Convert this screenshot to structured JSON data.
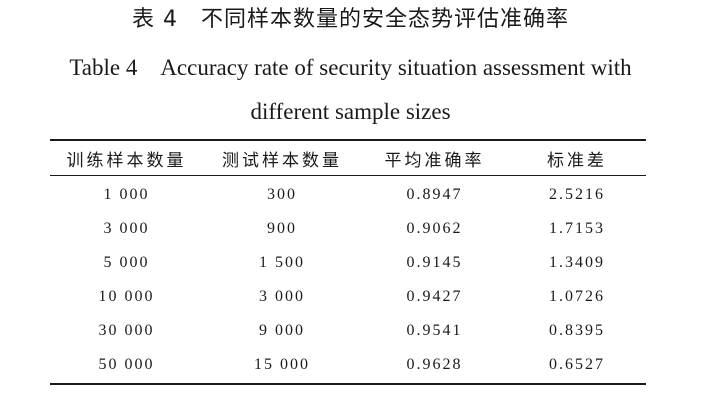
{
  "caption": {
    "cn": "表 4　不同样本数量的安全态势评估准确率",
    "en_line1": "Table 4　Accuracy rate of security situation assessment with",
    "en_line2": "different sample sizes"
  },
  "table": {
    "headers": [
      "训练样本数量",
      "测试样本数量",
      "平均准确率",
      "标准差"
    ],
    "rows": [
      [
        "1 000",
        "300",
        "0.8947",
        "2.5216"
      ],
      [
        "3 000",
        "900",
        "0.9062",
        "1.7153"
      ],
      [
        "5 000",
        "1 500",
        "0.9145",
        "1.3409"
      ],
      [
        "10 000",
        "3 000",
        "0.9427",
        "1.0726"
      ],
      [
        "30 000",
        "9 000",
        "0.9541",
        "0.8395"
      ],
      [
        "50 000",
        "15 000",
        "0.9628",
        "0.6527"
      ]
    ]
  }
}
